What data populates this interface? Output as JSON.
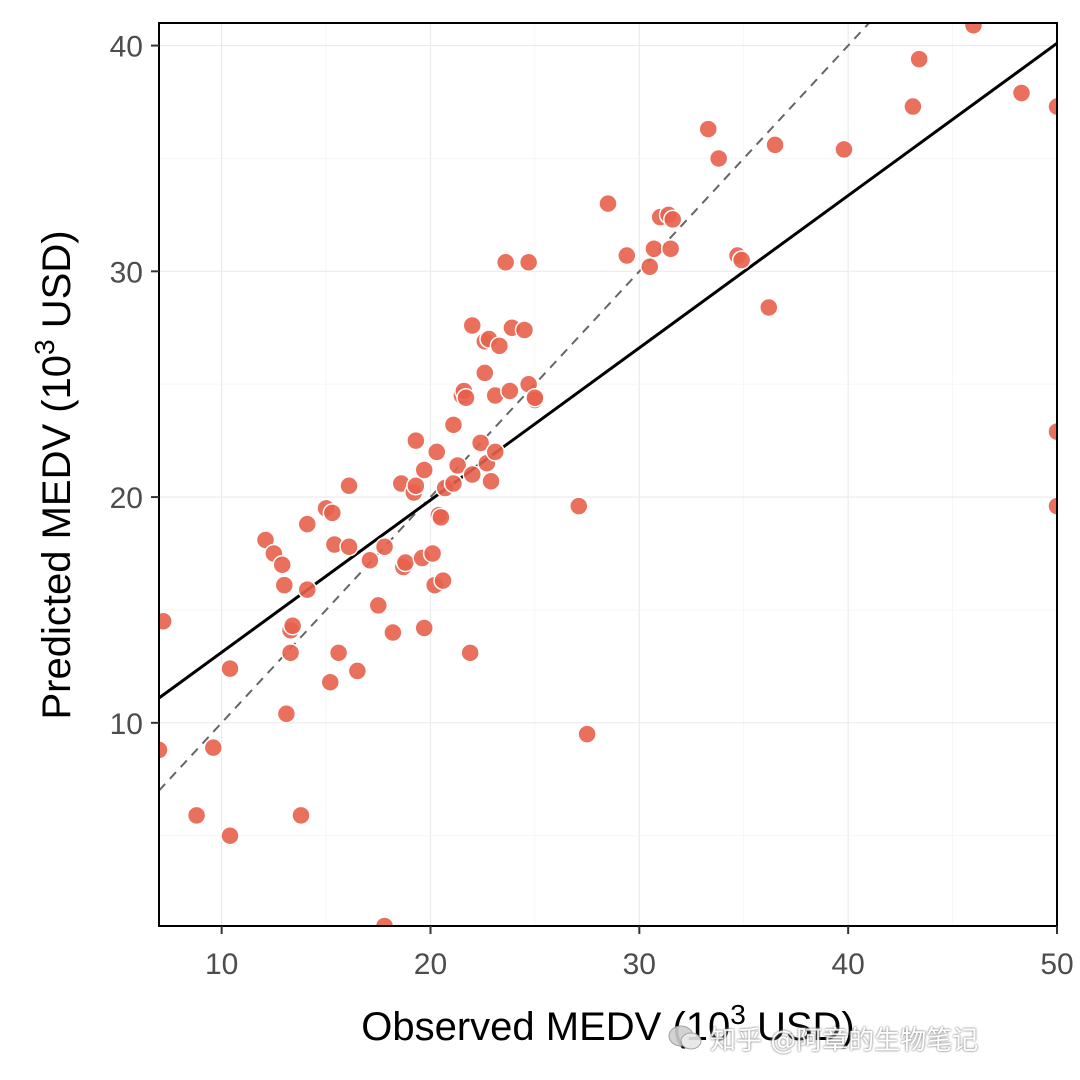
{
  "chart_data": {
    "type": "scatter",
    "xlabel_prefix": "Observed MEDV (10",
    "xlabel_sup": "3",
    "xlabel_suffix": " USD)",
    "ylabel_prefix": "Predicted MEDV (10",
    "ylabel_sup": "3",
    "ylabel_suffix": " USD)",
    "xlim": [
      7,
      50
    ],
    "ylim": [
      1,
      41
    ],
    "x_ticks": [
      10,
      20,
      30,
      40,
      50
    ],
    "y_ticks": [
      10,
      20,
      30,
      40
    ],
    "grid": true,
    "point_color": "#e8604c",
    "reference_line": {
      "type": "identity",
      "style": "dashed",
      "color": "#666666"
    },
    "fit_line": {
      "x": [
        7,
        50
      ],
      "y": [
        11.1,
        40.1
      ],
      "color": "#000000"
    },
    "points": [
      [
        7.0,
        8.8
      ],
      [
        7.2,
        14.5
      ],
      [
        8.8,
        5.9
      ],
      [
        9.6,
        8.9
      ],
      [
        10.4,
        5.0
      ],
      [
        10.4,
        12.4
      ],
      [
        12.1,
        18.1
      ],
      [
        12.5,
        17.5
      ],
      [
        12.9,
        17.0
      ],
      [
        13.0,
        16.1
      ],
      [
        13.1,
        10.4
      ],
      [
        13.3,
        13.1
      ],
      [
        13.3,
        14.1
      ],
      [
        13.4,
        14.3
      ],
      [
        13.8,
        5.9
      ],
      [
        14.1,
        15.9
      ],
      [
        14.1,
        18.8
      ],
      [
        15.0,
        19.5
      ],
      [
        15.2,
        11.8
      ],
      [
        15.3,
        19.3
      ],
      [
        15.4,
        17.9
      ],
      [
        15.6,
        13.1
      ],
      [
        16.1,
        20.5
      ],
      [
        16.1,
        17.8
      ],
      [
        16.5,
        12.3
      ],
      [
        17.1,
        17.2
      ],
      [
        17.5,
        15.2
      ],
      [
        17.8,
        17.8
      ],
      [
        17.8,
        1.0
      ],
      [
        18.2,
        14.0
      ],
      [
        18.6,
        20.6
      ],
      [
        18.7,
        16.9
      ],
      [
        18.8,
        17.1
      ],
      [
        19.2,
        20.2
      ],
      [
        19.3,
        22.5
      ],
      [
        19.3,
        20.5
      ],
      [
        19.6,
        17.3
      ],
      [
        19.7,
        14.2
      ],
      [
        19.7,
        21.2
      ],
      [
        20.1,
        17.5
      ],
      [
        20.2,
        16.1
      ],
      [
        20.3,
        22.0
      ],
      [
        20.4,
        19.2
      ],
      [
        20.5,
        19.1
      ],
      [
        20.6,
        16.3
      ],
      [
        20.7,
        20.4
      ],
      [
        21.1,
        23.2
      ],
      [
        21.1,
        20.6
      ],
      [
        21.3,
        21.4
      ],
      [
        21.5,
        24.5
      ],
      [
        21.6,
        24.7
      ],
      [
        21.7,
        24.4
      ],
      [
        21.9,
        13.1
      ],
      [
        22.0,
        27.6
      ],
      [
        22.0,
        21.0
      ],
      [
        22.4,
        22.4
      ],
      [
        22.6,
        25.5
      ],
      [
        22.6,
        26.9
      ],
      [
        22.7,
        21.5
      ],
      [
        22.8,
        27.0
      ],
      [
        22.9,
        20.7
      ],
      [
        23.1,
        24.5
      ],
      [
        23.1,
        22.0
      ],
      [
        23.3,
        26.7
      ],
      [
        23.6,
        30.4
      ],
      [
        23.8,
        24.7
      ],
      [
        23.9,
        27.5
      ],
      [
        24.5,
        27.4
      ],
      [
        24.7,
        25.0
      ],
      [
        24.7,
        30.4
      ],
      [
        25.0,
        24.3
      ],
      [
        25.0,
        24.4
      ],
      [
        27.1,
        19.6
      ],
      [
        27.5,
        9.5
      ],
      [
        28.5,
        33.0
      ],
      [
        29.4,
        30.7
      ],
      [
        30.5,
        30.2
      ],
      [
        30.7,
        31.0
      ],
      [
        31.0,
        32.4
      ],
      [
        31.4,
        32.5
      ],
      [
        31.5,
        31.0
      ],
      [
        31.6,
        32.3
      ],
      [
        33.3,
        36.3
      ],
      [
        33.8,
        35.0
      ],
      [
        34.7,
        30.7
      ],
      [
        34.9,
        30.5
      ],
      [
        36.2,
        28.4
      ],
      [
        36.5,
        35.6
      ],
      [
        39.8,
        35.4
      ],
      [
        43.1,
        37.3
      ],
      [
        43.4,
        39.4
      ],
      [
        46.0,
        40.9
      ],
      [
        48.3,
        37.9
      ],
      [
        50.0,
        37.3
      ],
      [
        50.0,
        22.9
      ],
      [
        50.0,
        19.6
      ]
    ]
  },
  "watermark": {
    "text": "知乎 @阿章的生物笔记"
  }
}
